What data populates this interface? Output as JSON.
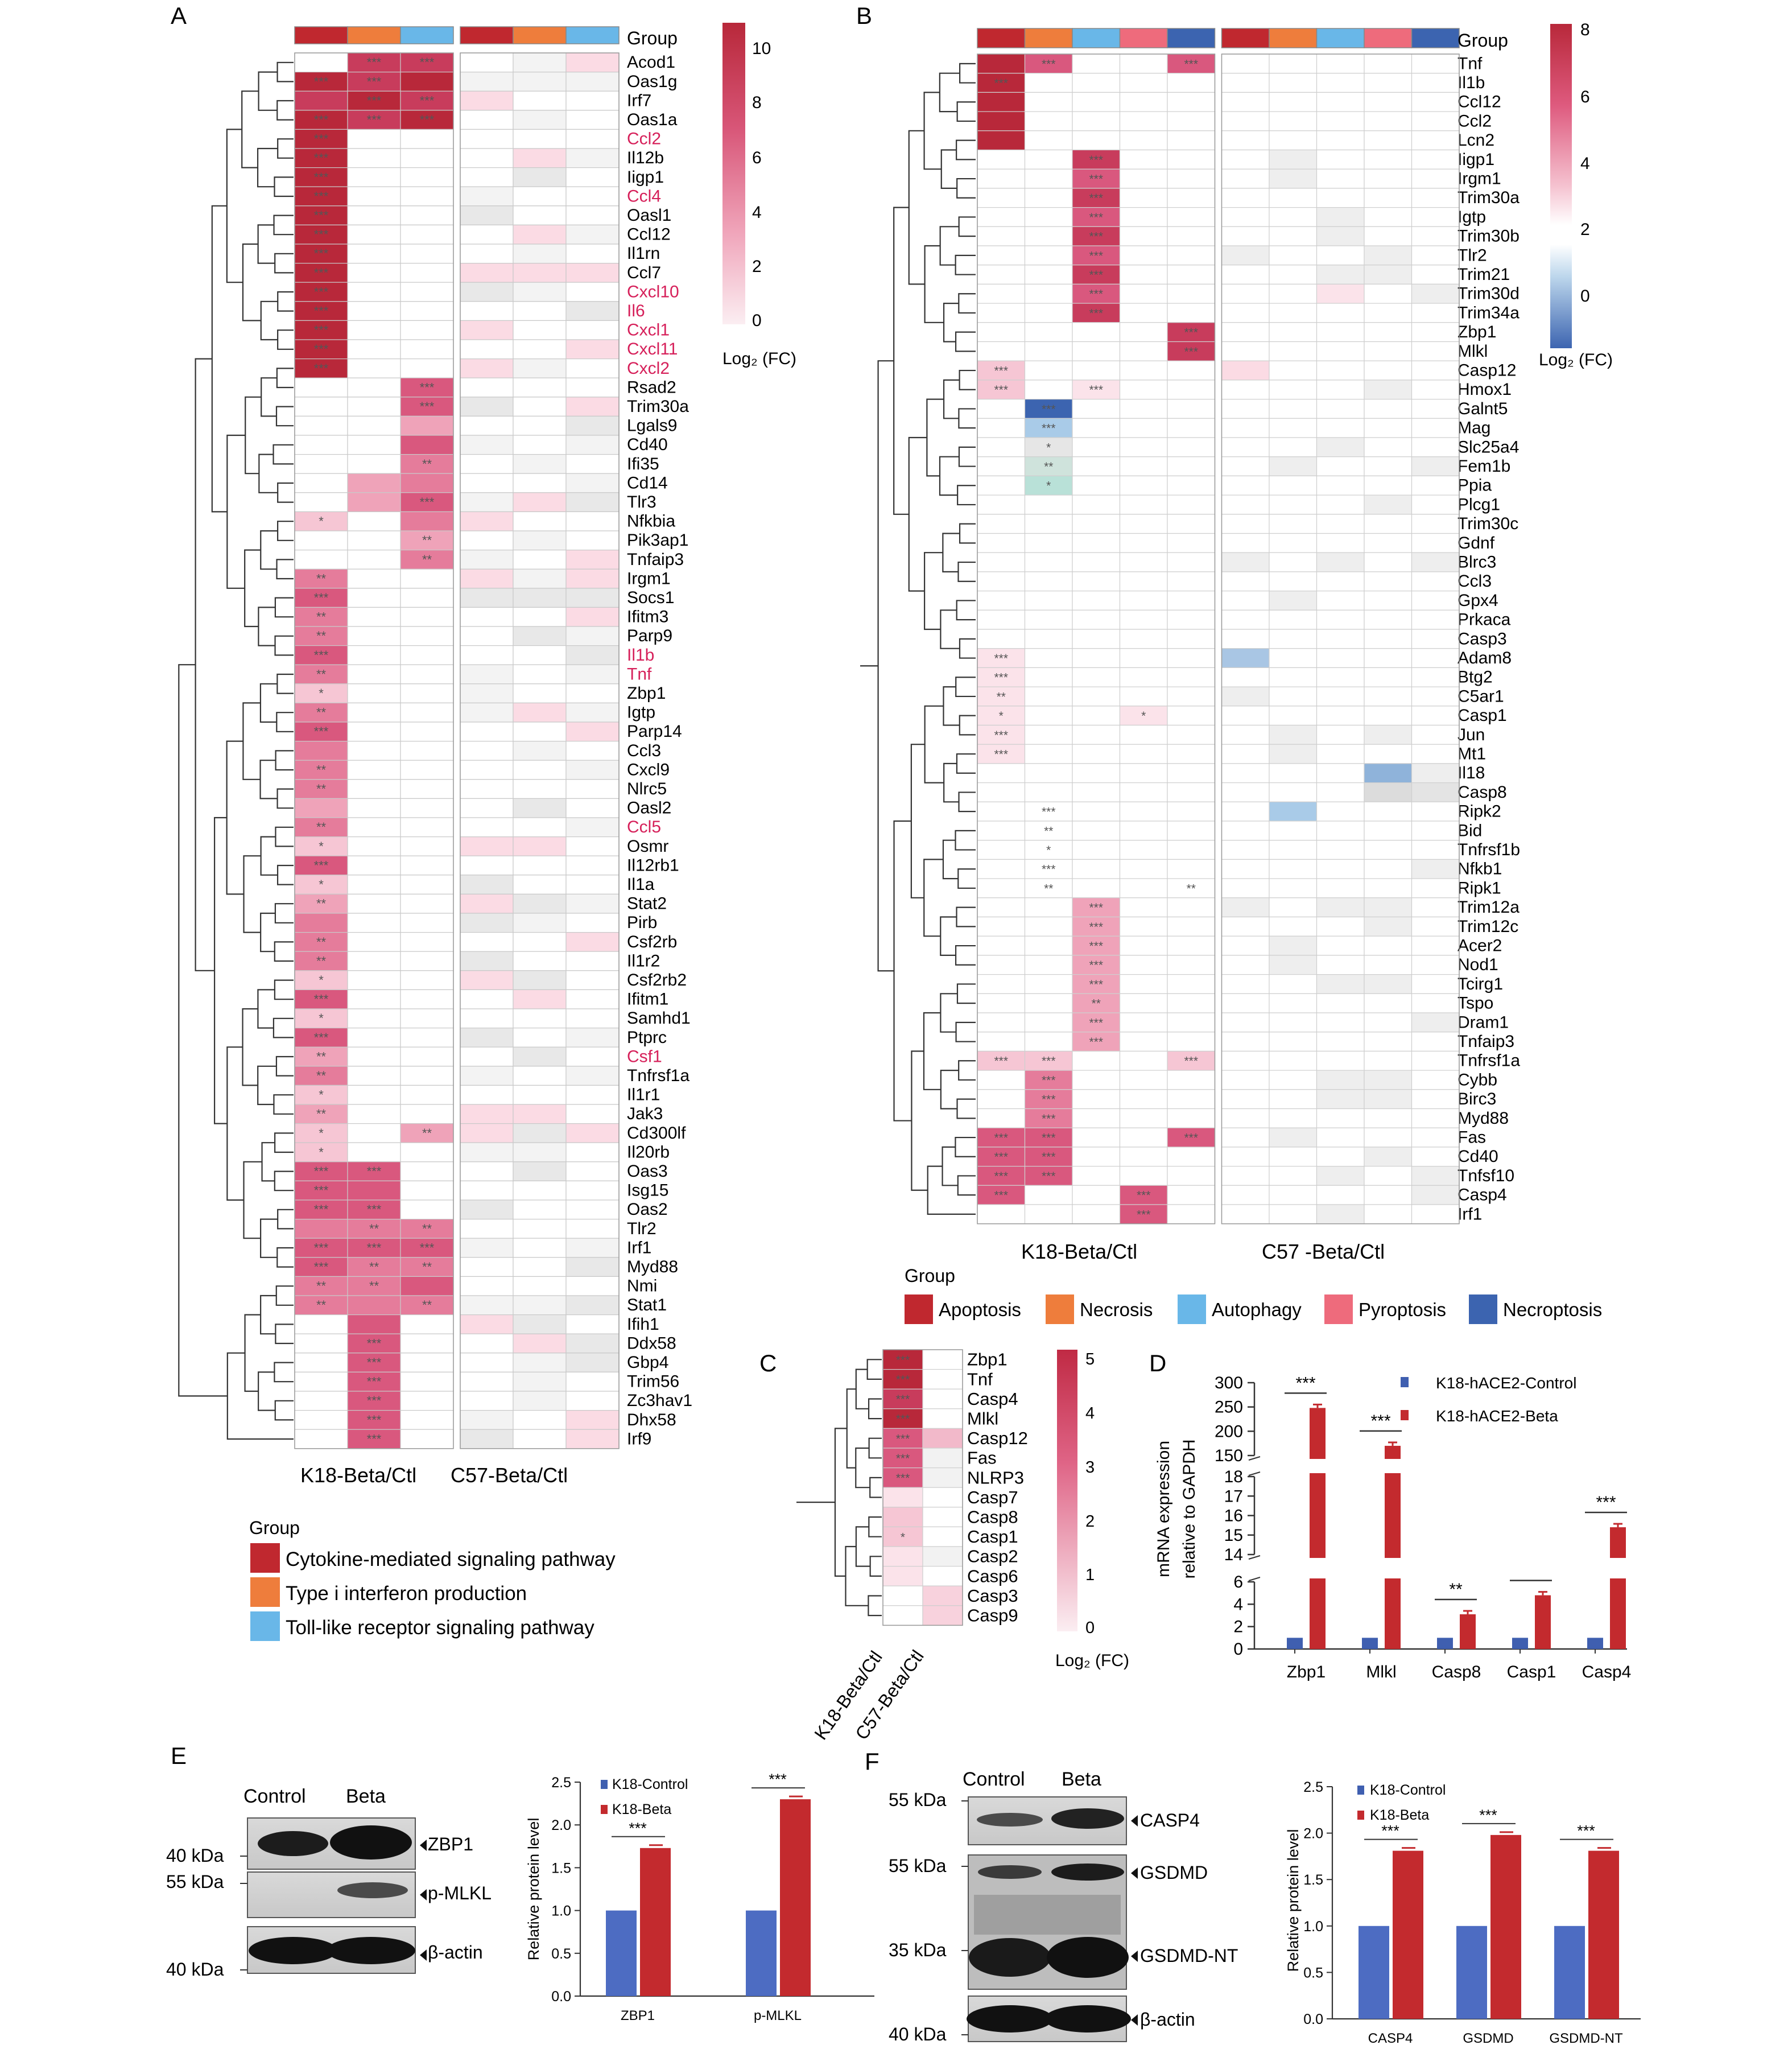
{
  "panels": {
    "A": "A",
    "B": "B",
    "C": "C",
    "D": "D",
    "E": "E",
    "F": "F"
  },
  "panelA": {
    "group_header": "Group",
    "genes": [
      "Acod1",
      "Oas1g",
      "Irf7",
      "Oas1a",
      "Ccl2",
      "Il12b",
      "Iigp1",
      "Ccl4",
      "Oasl1",
      "Ccl12",
      "Il1rn",
      "Ccl7",
      "Cxcl10",
      "Il6",
      "Cxcl1",
      "Cxcl11",
      "Cxcl2",
      "Rsad2",
      "Trim30a",
      "Lgals9",
      "Cd40",
      "Ifi35",
      "Cd14",
      "Tlr3",
      "Nfkbia",
      "Pik3ap1",
      "Tnfaip3",
      "Irgm1",
      "Socs1",
      "Ifitm3",
      "Parp9",
      "Il1b",
      "Tnf",
      "Zbp1",
      "Igtp",
      "Parp14",
      "Ccl3",
      "Cxcl9",
      "Nlrc5",
      "Oasl2",
      "Ccl5",
      "Osmr",
      "Il12rb1",
      "Il1a",
      "Stat2",
      "Pirb",
      "Csf2rb",
      "Il1r2",
      "Csf2rb2",
      "Ifitm1",
      "Samhd1",
      "Ptprc",
      "Csf1",
      "Tnfrsf1a",
      "Il1r1",
      "Jak3",
      "Cd300lf",
      "Il20rb",
      "Oas3",
      "Isg15",
      "Oas2",
      "Tlr2",
      "Irf1",
      "Myd88",
      "Nmi",
      "Stat1",
      "Ifih1",
      "Ddx58",
      "Gbp4",
      "Trim56",
      "Zc3hav1",
      "Dhx58",
      "Irf9"
    ],
    "highlight_genes": [
      "Ccl2",
      "Ccl4",
      "Cxcl10",
      "Il6",
      "Cxcl1",
      "Cxcl11",
      "Cxcl2",
      "Il1b",
      "Tnf",
      "Ccl5",
      "Csf1"
    ],
    "highlight_color": "#d6205a",
    "x_labels": [
      "K18-Beta/Ctl",
      "C57-Beta/Ctl"
    ],
    "colorbar_ticks": [
      "10",
      "8",
      "6",
      "4",
      "2",
      "0"
    ],
    "colorbar_title": "Log₂ (FC)",
    "legend_title": "Group",
    "legend": [
      {
        "label": "Cytokine-mediated signaling pathway",
        "color": "#c0282f"
      },
      {
        "label": "Type i interferon production",
        "color": "#ee7d3c"
      },
      {
        "label": "Toll-like receptor signaling pathway",
        "color": "#69b7e8"
      }
    ],
    "group_bar_colors": [
      "#c0282f",
      "#ee7d3c",
      "#69b7e8"
    ]
  },
  "panelB": {
    "group_header": "Group",
    "genes": [
      "Tnf",
      "Il1b",
      "Ccl12",
      "Ccl2",
      "Lcn2",
      "Iigp1",
      "Irgm1",
      "Trim30a",
      "Igtp",
      "Trim30b",
      "Tlr2",
      "Trim21",
      "Trim30d",
      "Trim34a",
      "Zbp1",
      "Mlkl",
      "Casp12",
      "Hmox1",
      "Galnt5",
      "Mag",
      "Slc25a4",
      "Fem1b",
      "Ppia",
      "Plcg1",
      "Trim30c",
      "Gdnf",
      "Blrc3",
      "Ccl3",
      "Gpx4",
      "Prkaca",
      "Casp3",
      "Adam8",
      "Btg2",
      "C5ar1",
      "Casp1",
      "Jun",
      "Mt1",
      "Il18",
      "Casp8",
      "Ripk2",
      "Bid",
      "Tnfrsf1b",
      "Nfkb1",
      "Ripk1",
      "Trim12a",
      "Trim12c",
      "Acer2",
      "Nod1",
      "Tcirg1",
      "Tspo",
      "Dram1",
      "Tnfaip3",
      "Tnfrsf1a",
      "Cybb",
      "Birc3",
      "Myd88",
      "Fas",
      "Cd40",
      "Tnfsf10",
      "Casp4",
      "Irf1"
    ],
    "x_labels": [
      "K18-Beta/Ctl",
      "C57 -Beta/Ctl"
    ],
    "colorbar_ticks": [
      "8",
      "6",
      "4",
      "2",
      "0"
    ],
    "colorbar_title": "Log₂ (FC)",
    "legend_title": "Group",
    "legend": [
      {
        "label": "Apoptosis",
        "color": "#c0282f"
      },
      {
        "label": "Necrosis",
        "color": "#ee7d3c"
      },
      {
        "label": "Autophagy",
        "color": "#69b7e8"
      },
      {
        "label": "Pyroptosis",
        "color": "#ee6b7c"
      },
      {
        "label": "Necroptosis",
        "color": "#3c64b0"
      }
    ]
  },
  "panelC": {
    "genes": [
      "Zbp1",
      "Tnf",
      "Casp4",
      "Mlkl",
      "Casp12",
      "Fas",
      "NLRP3",
      "Casp7",
      "Casp8",
      "Casp1",
      "Casp2",
      "Casp6",
      "Casp3",
      "Casp9"
    ],
    "x_labels": [
      "K18-Beta/Ctl",
      "C57-Beta/Ctl"
    ],
    "colorbar_ticks": [
      "5",
      "4",
      "3",
      "2",
      "1",
      "0"
    ],
    "colorbar_title": "Log₂ (FC)"
  },
  "panelD": {
    "ylabel_line1": "mRNA expression",
    "ylabel_line2": "relative to GAPDH",
    "yticks_top": [
      "300",
      "250",
      "200",
      "150"
    ],
    "yticks_mid": [
      "18",
      "17",
      "16",
      "15",
      "14"
    ],
    "yticks_low": [
      "6",
      "4",
      "2",
      "0"
    ],
    "legend": [
      {
        "label": "K18-hACE2-Control",
        "color": "#3f5fb0"
      },
      {
        "label": "K18-hACE2-Beta",
        "color": "#c32a2e"
      }
    ],
    "sig": [
      "***",
      "***",
      "**",
      "***",
      "***"
    ]
  },
  "panelE": {
    "blot_cols": [
      "Control",
      "Beta"
    ],
    "bands": [
      "ZBP1",
      "p-MLKL",
      "β-actin"
    ],
    "markers": [
      "40 kDa",
      "55 kDa",
      "40 kDa"
    ],
    "ylabel": "Relative protein level",
    "yticks": [
      "2.5",
      "2.0",
      "1.5",
      "1.0",
      "0.5",
      "0.0"
    ],
    "legend": [
      {
        "label": "K18-Control",
        "color": "#3f5fb0"
      },
      {
        "label": "K18-Beta",
        "color": "#c32a2e"
      }
    ],
    "sig": [
      "***",
      "***"
    ]
  },
  "panelF": {
    "blot_cols": [
      "Control",
      "Beta"
    ],
    "bands": [
      "CASP4",
      "GSDMD",
      "GSDMD-NT",
      "β-actin"
    ],
    "markers": [
      "55 kDa",
      "55 kDa",
      "35 kDa",
      "40 kDa"
    ],
    "ylabel": "Relative protein level",
    "yticks": [
      "2.5",
      "2.0",
      "1.5",
      "1.0",
      "0.5",
      "0.0"
    ],
    "legend": [
      {
        "label": "K18-Control",
        "color": "#3f5fb0"
      },
      {
        "label": "K18-Beta",
        "color": "#c32a2e"
      }
    ],
    "sig": [
      "***",
      "***",
      "***"
    ]
  },
  "chart_data": [
    {
      "type": "bar",
      "title": "",
      "ylabel": "mRNA expression relative to GAPDH",
      "categories": [
        "Zbp1",
        "Mlkl",
        "Casp8",
        "Casp1",
        "Casp4"
      ],
      "series": [
        {
          "name": "K18-hACE2-Control",
          "values": [
            1,
            1,
            1,
            1,
            1
          ]
        },
        {
          "name": "K18-hACE2-Beta",
          "values": [
            248,
            170,
            3.1,
            4.8,
            15.4
          ]
        }
      ]
    },
    {
      "type": "bar",
      "title": "",
      "ylabel": "Relative protein level",
      "ylim": [
        0,
        2.5
      ],
      "categories": [
        "ZBP1",
        "p-MLKL"
      ],
      "series": [
        {
          "name": "K18-Control",
          "values": [
            1.0,
            1.0
          ]
        },
        {
          "name": "K18-Beta",
          "values": [
            1.73,
            2.3
          ]
        }
      ]
    },
    {
      "type": "bar",
      "title": "",
      "ylabel": "Relative protein level",
      "ylim": [
        0,
        2.5
      ],
      "categories": [
        "CASP4",
        "GSDMD",
        "GSDMD-NT"
      ],
      "series": [
        {
          "name": "K18-Control",
          "values": [
            1.0,
            1.0,
            1.0
          ]
        },
        {
          "name": "K18-Beta",
          "values": [
            1.81,
            1.98,
            1.81
          ]
        }
      ]
    }
  ]
}
